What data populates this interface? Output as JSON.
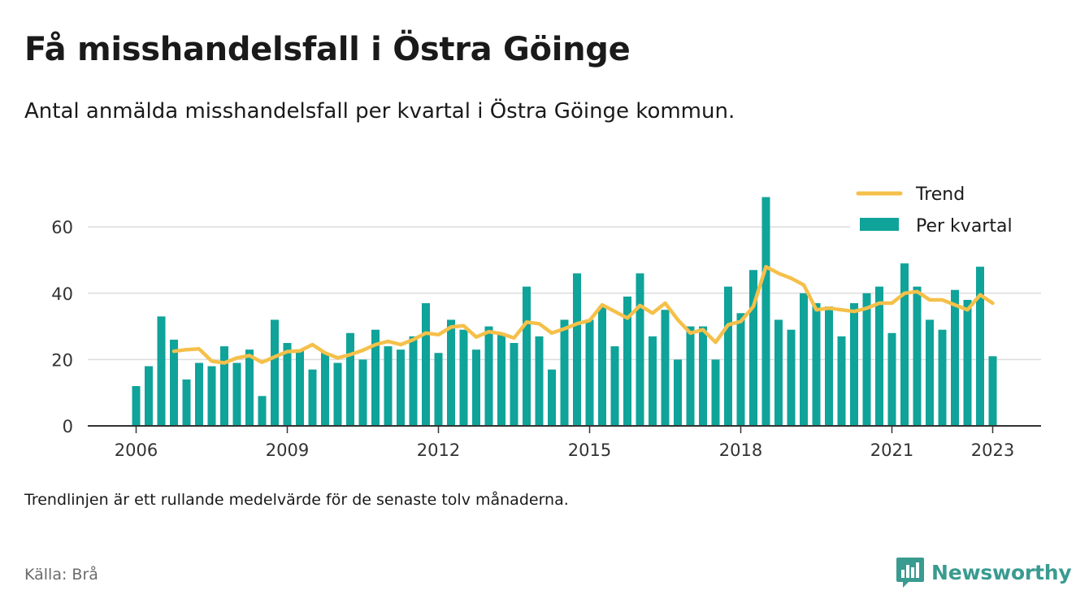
{
  "title": "Få misshandelsfall i Östra Göinge",
  "subtitle": "Antal anmälda misshandelsfall per kvartal i Östra Göinge kommun.",
  "footnote": "Trendlinjen är ett rullande medelvärde för de senaste tolv månaderna.",
  "source": "Källa: Brå",
  "brand": "Newsworthy",
  "colors": {
    "bars": "#0fa39a",
    "trend": "#f5c04a",
    "grid": "#dddddd",
    "axis": "#333333",
    "brand": "#3a9b90"
  },
  "chart_data": {
    "type": "bar",
    "legend": {
      "position": "top-right",
      "entries": [
        "Trend",
        "Per kvartal"
      ]
    },
    "x_ticks": [
      "2006",
      "2009",
      "2012",
      "2015",
      "2018",
      "2021",
      "2023"
    ],
    "y_ticks": [
      "0",
      "20",
      "40",
      "60"
    ],
    "ylim": [
      0,
      72
    ],
    "grid": true,
    "categories": [
      "2006 Q1",
      "2006 Q2",
      "2006 Q3",
      "2006 Q4",
      "2007 Q1",
      "2007 Q2",
      "2007 Q3",
      "2007 Q4",
      "2008 Q1",
      "2008 Q2",
      "2008 Q3",
      "2008 Q4",
      "2009 Q1",
      "2009 Q2",
      "2009 Q3",
      "2009 Q4",
      "2010 Q1",
      "2010 Q2",
      "2010 Q3",
      "2010 Q4",
      "2011 Q1",
      "2011 Q2",
      "2011 Q3",
      "2011 Q4",
      "2012 Q1",
      "2012 Q2",
      "2012 Q3",
      "2012 Q4",
      "2013 Q1",
      "2013 Q2",
      "2013 Q3",
      "2013 Q4",
      "2014 Q1",
      "2014 Q2",
      "2014 Q3",
      "2014 Q4",
      "2015 Q1",
      "2015 Q2",
      "2015 Q3",
      "2015 Q4",
      "2016 Q1",
      "2016 Q2",
      "2016 Q3",
      "2016 Q4",
      "2017 Q1",
      "2017 Q2",
      "2017 Q3",
      "2017 Q4",
      "2018 Q1",
      "2018 Q2",
      "2018 Q3",
      "2018 Q4",
      "2019 Q1",
      "2019 Q2",
      "2019 Q3",
      "2019 Q4",
      "2020 Q1",
      "2020 Q2",
      "2020 Q3",
      "2020 Q4",
      "2021 Q1",
      "2021 Q2",
      "2021 Q3",
      "2021 Q4",
      "2022 Q1",
      "2022 Q2",
      "2022 Q3",
      "2022 Q4",
      "2023 Q1"
    ],
    "series": [
      {
        "name": "Per kvartal",
        "type": "bar",
        "values": [
          12,
          18,
          33,
          26,
          14,
          19,
          18,
          24,
          19,
          23,
          9,
          32,
          25,
          23,
          17,
          22,
          19,
          28,
          20,
          29,
          24,
          23,
          27,
          37,
          22,
          32,
          29,
          23,
          30,
          28,
          25,
          42,
          27,
          17,
          32,
          46,
          32,
          36,
          24,
          39,
          46,
          27,
          35,
          20,
          30,
          30,
          20,
          42,
          34,
          47,
          69,
          32,
          29,
          40,
          37,
          36,
          27,
          37,
          40,
          42,
          28,
          49,
          42,
          32,
          29,
          41,
          38,
          48,
          21
        ]
      },
      {
        "name": "Trend",
        "type": "line",
        "values": [
          null,
          null,
          null,
          22.5,
          23,
          23.2,
          19.5,
          19.0,
          20.5,
          21.2,
          19.2,
          20.8,
          22.4,
          22.6,
          24.5,
          22.0,
          20.5,
          21.5,
          22.8,
          24.5,
          25.5,
          24.5,
          26.0,
          28.0,
          27.5,
          29.8,
          30.2,
          26.8,
          28.4,
          27.8,
          26.5,
          31.3,
          30.8,
          28.0,
          29.3,
          30.8,
          31.8,
          36.5,
          34.5,
          32.5,
          36.3,
          34.0,
          37.0,
          32.0,
          28.0,
          29.0,
          25.2,
          30.5,
          31.5,
          36.0,
          48.0,
          46.0,
          44.5,
          42.5,
          35.0,
          35.5,
          35.0,
          34.5,
          35.5,
          37.0,
          37.0,
          40.0,
          40.5,
          38.0,
          38.0,
          36.5,
          35.0,
          39.5,
          37.0
        ]
      }
    ]
  }
}
